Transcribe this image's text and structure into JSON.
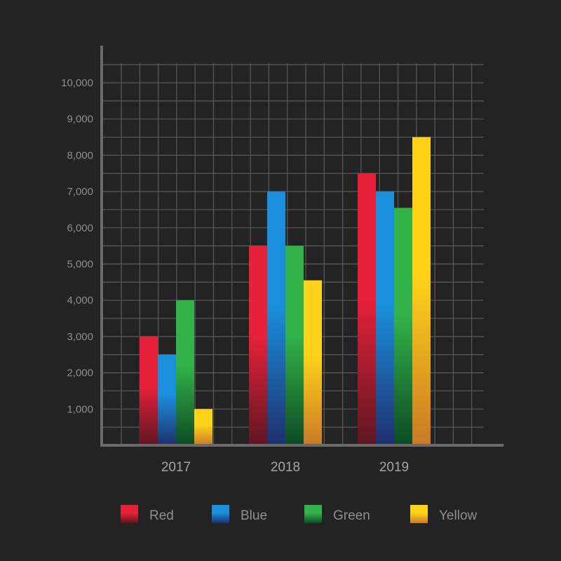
{
  "chart_data": {
    "type": "bar",
    "title": "",
    "xlabel": "",
    "ylabel": "",
    "categories": [
      "2017",
      "2018",
      "2019"
    ],
    "ylim": [
      0,
      10000
    ],
    "yticks": [
      1000,
      2000,
      3000,
      4000,
      5000,
      6000,
      7000,
      8000,
      9000,
      10000
    ],
    "ytick_labels": [
      "1,000",
      "2,000",
      "3,000",
      "4,000",
      "5,000",
      "6,000",
      "7,000",
      "8,000",
      "9,000",
      "10,000"
    ],
    "grid": true,
    "legend_position": "bottom",
    "series": [
      {
        "name": "Red",
        "color": "#e8213a",
        "color_dark": "#5e1620",
        "values": [
          3000,
          5500,
          7500
        ]
      },
      {
        "name": "Blue",
        "color": "#1a8fdc",
        "color_dark": "#1f2f6e",
        "values": [
          2500,
          7000,
          7000
        ]
      },
      {
        "name": "Green",
        "color": "#33b24a",
        "color_dark": "#0d4a24",
        "values": [
          4000,
          5500,
          6550
        ]
      },
      {
        "name": "Yellow",
        "color": "#ffd21a",
        "color_dark": "#c97a25",
        "values": [
          1000,
          4550,
          8500
        ]
      }
    ]
  }
}
